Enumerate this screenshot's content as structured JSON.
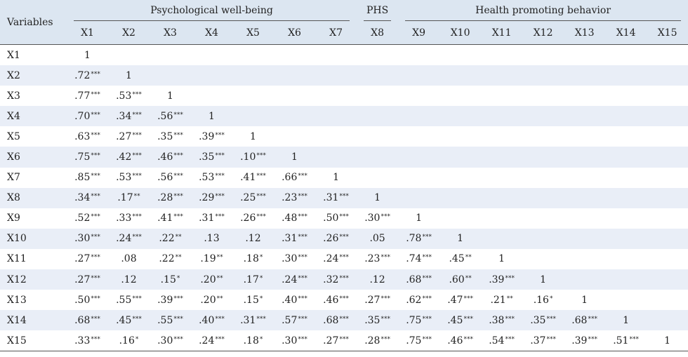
{
  "table": {
    "variables_label": "Variables",
    "groups": [
      {
        "label": "Psychological well-being",
        "span": 7
      },
      {
        "label": "PHS",
        "span": 1
      },
      {
        "label": "Health promoting behavior",
        "span": 7
      }
    ],
    "columns": [
      "X1",
      "X2",
      "X3",
      "X4",
      "X5",
      "X6",
      "X7",
      "X8",
      "X9",
      "X10",
      "X11",
      "X12",
      "X13",
      "X14",
      "X15"
    ],
    "rows": [
      {
        "label": "X1",
        "cells": [
          [
            "1",
            ""
          ]
        ]
      },
      {
        "label": "X2",
        "cells": [
          [
            ".72",
            "***"
          ],
          [
            "1",
            ""
          ]
        ]
      },
      {
        "label": "X3",
        "cells": [
          [
            ".77",
            "***"
          ],
          [
            ".53",
            "***"
          ],
          [
            "1",
            ""
          ]
        ]
      },
      {
        "label": "X4",
        "cells": [
          [
            ".70",
            "***"
          ],
          [
            ".34",
            "***"
          ],
          [
            ".56",
            "***"
          ],
          [
            "1",
            ""
          ]
        ]
      },
      {
        "label": "X5",
        "cells": [
          [
            ".63",
            "***"
          ],
          [
            ".27",
            "***"
          ],
          [
            ".35",
            "***"
          ],
          [
            ".39",
            "***"
          ],
          [
            "1",
            ""
          ]
        ]
      },
      {
        "label": "X6",
        "cells": [
          [
            ".75",
            "***"
          ],
          [
            ".42",
            "***"
          ],
          [
            ".46",
            "***"
          ],
          [
            ".35",
            "***"
          ],
          [
            ".10",
            "***"
          ],
          [
            "1",
            ""
          ]
        ]
      },
      {
        "label": "X7",
        "cells": [
          [
            ".85",
            "***"
          ],
          [
            ".53",
            "***"
          ],
          [
            ".56",
            "***"
          ],
          [
            ".53",
            "***"
          ],
          [
            ".41",
            "***"
          ],
          [
            ".66",
            "***"
          ],
          [
            "1",
            ""
          ]
        ]
      },
      {
        "label": "X8",
        "cells": [
          [
            ".34",
            "***"
          ],
          [
            ".17",
            "**"
          ],
          [
            ".28",
            "***"
          ],
          [
            ".29",
            "***"
          ],
          [
            ".25",
            "***"
          ],
          [
            ".23",
            "***"
          ],
          [
            ".31",
            "***"
          ],
          [
            "1",
            ""
          ]
        ]
      },
      {
        "label": "X9",
        "cells": [
          [
            ".52",
            "***"
          ],
          [
            ".33",
            "***"
          ],
          [
            ".41",
            "***"
          ],
          [
            ".31",
            "***"
          ],
          [
            ".26",
            "***"
          ],
          [
            ".48",
            "***"
          ],
          [
            ".50",
            "***"
          ],
          [
            ".30",
            "***"
          ],
          [
            "1",
            ""
          ]
        ]
      },
      {
        "label": "X10",
        "cells": [
          [
            ".30",
            "***"
          ],
          [
            ".24",
            "***"
          ],
          [
            ".22",
            "**"
          ],
          [
            ".13",
            ""
          ],
          [
            ".12",
            ""
          ],
          [
            ".31",
            "***"
          ],
          [
            ".26",
            "***"
          ],
          [
            ".05",
            ""
          ],
          [
            ".78",
            "***"
          ],
          [
            "1",
            ""
          ]
        ]
      },
      {
        "label": "X11",
        "cells": [
          [
            ".27",
            "***"
          ],
          [
            ".08",
            ""
          ],
          [
            ".22",
            "**"
          ],
          [
            ".19",
            "**"
          ],
          [
            ".18",
            "*"
          ],
          [
            ".30",
            "***"
          ],
          [
            ".24",
            "***"
          ],
          [
            ".23",
            "***"
          ],
          [
            ".74",
            "***"
          ],
          [
            ".45",
            "**"
          ],
          [
            "1",
            ""
          ]
        ]
      },
      {
        "label": "X12",
        "cells": [
          [
            ".27",
            "***"
          ],
          [
            ".12",
            ""
          ],
          [
            ".15",
            "*"
          ],
          [
            ".20",
            "**"
          ],
          [
            ".17",
            "*"
          ],
          [
            ".24",
            "***"
          ],
          [
            ".32",
            "***"
          ],
          [
            ".12",
            ""
          ],
          [
            ".68",
            "***"
          ],
          [
            ".60",
            "**"
          ],
          [
            ".39",
            "***"
          ],
          [
            "1",
            ""
          ]
        ]
      },
      {
        "label": "X13",
        "cells": [
          [
            ".50",
            "***"
          ],
          [
            ".55",
            "***"
          ],
          [
            ".39",
            "***"
          ],
          [
            ".20",
            "**"
          ],
          [
            ".15",
            "*"
          ],
          [
            ".40",
            "***"
          ],
          [
            ".46",
            "***"
          ],
          [
            ".27",
            "***"
          ],
          [
            ".62",
            "***"
          ],
          [
            ".47",
            "***"
          ],
          [
            ".21",
            "**"
          ],
          [
            ".16",
            "*"
          ],
          [
            "1",
            ""
          ]
        ]
      },
      {
        "label": "X14",
        "cells": [
          [
            ".68",
            "***"
          ],
          [
            ".45",
            "***"
          ],
          [
            ".55",
            "***"
          ],
          [
            ".40",
            "***"
          ],
          [
            ".31",
            "***"
          ],
          [
            ".57",
            "***"
          ],
          [
            ".68",
            "***"
          ],
          [
            ".35",
            "***"
          ],
          [
            ".75",
            "***"
          ],
          [
            ".45",
            "***"
          ],
          [
            ".38",
            "***"
          ],
          [
            ".35",
            "***"
          ],
          [
            ".68",
            "***"
          ],
          [
            "1",
            ""
          ]
        ]
      },
      {
        "label": "X15",
        "cells": [
          [
            ".33",
            "***"
          ],
          [
            ".16",
            "*"
          ],
          [
            ".30",
            "***"
          ],
          [
            ".24",
            "***"
          ],
          [
            ".18",
            "*"
          ],
          [
            ".30",
            "***"
          ],
          [
            ".27",
            "***"
          ],
          [
            ".28",
            "***"
          ],
          [
            ".75",
            "***"
          ],
          [
            ".46",
            "***"
          ],
          [
            ".54",
            "***"
          ],
          [
            ".37",
            "***"
          ],
          [
            ".39",
            "***"
          ],
          [
            ".51",
            "***"
          ],
          [
            "1",
            ""
          ]
        ]
      }
    ]
  }
}
